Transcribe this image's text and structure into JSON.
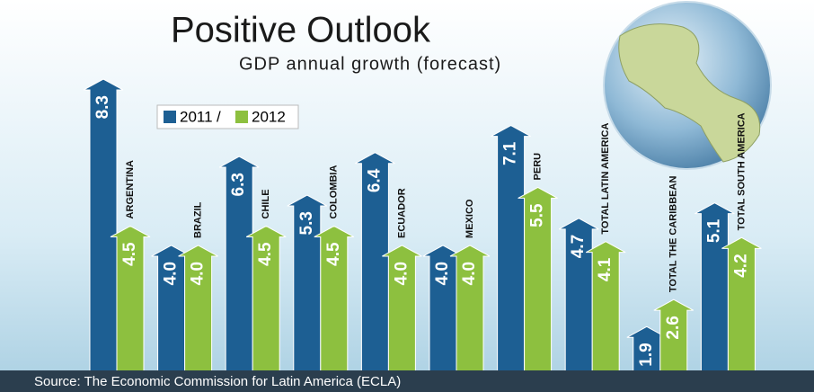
{
  "chart_data": {
    "type": "bar",
    "title": "Positive Outlook",
    "subtitle": "GDP annual growth (forecast)",
    "source": "Source: The Economic Commission for Latin America (ECLA)",
    "legend_separator": "/",
    "categories": [
      "ARGENTINA",
      "BRAZIL",
      "CHILE",
      "COLOMBIA",
      "ECUADOR",
      "MEXICO",
      "PERU",
      "TOTAL LATIN AMERICA",
      "TOTAL THE CARIBBEAN",
      "TOTAL SOUTH AMERICA"
    ],
    "series": [
      {
        "name": "2011",
        "color": "#1d5f93",
        "values": [
          8.3,
          4.0,
          6.3,
          5.3,
          6.4,
          4.0,
          7.1,
          4.7,
          1.9,
          5.1
        ],
        "value_labels": [
          "8.3",
          "4.0",
          "6.3",
          "5.3",
          "6.4",
          "4.0",
          "7.1",
          "4.7",
          "1.9",
          "5.1"
        ]
      },
      {
        "name": "2012",
        "color": "#8dc03f",
        "values": [
          4.5,
          4.0,
          4.5,
          4.5,
          4.0,
          4.0,
          5.5,
          4.1,
          2.6,
          4.2
        ],
        "value_labels": [
          "4.5",
          "4.0",
          "4.5",
          "4.5",
          "4.0",
          "4.0",
          "5.5",
          "4.1",
          "2.6",
          "4.2"
        ]
      }
    ]
  }
}
